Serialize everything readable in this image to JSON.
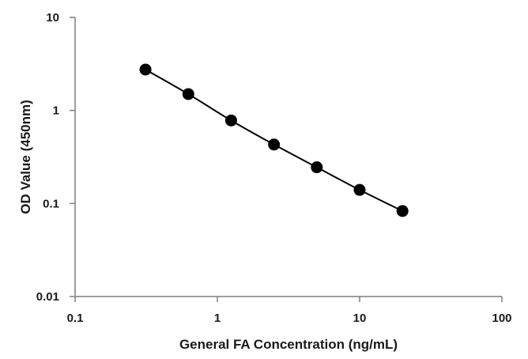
{
  "chart_data": {
    "type": "scatter",
    "title": "",
    "xlabel": "General FA Concentration (ng/mL)",
    "ylabel": "OD Value (450nm)",
    "x_scale": "log",
    "y_scale": "log",
    "xlim": [
      0.1,
      100
    ],
    "ylim": [
      0.01,
      10
    ],
    "x_ticks": [
      "0.1",
      "1",
      "10",
      "100"
    ],
    "y_ticks": [
      "0.01",
      "0.1",
      "1",
      "10"
    ],
    "grid": false,
    "legend": "none",
    "series": [
      {
        "x": [
          0.3125,
          0.625,
          1.25,
          2.5,
          5,
          10,
          20
        ],
        "y": [
          2.75,
          1.5,
          0.78,
          0.43,
          0.245,
          0.14,
          0.083
        ],
        "color": "#000000",
        "marker": "circle",
        "line": "smooth"
      }
    ]
  }
}
